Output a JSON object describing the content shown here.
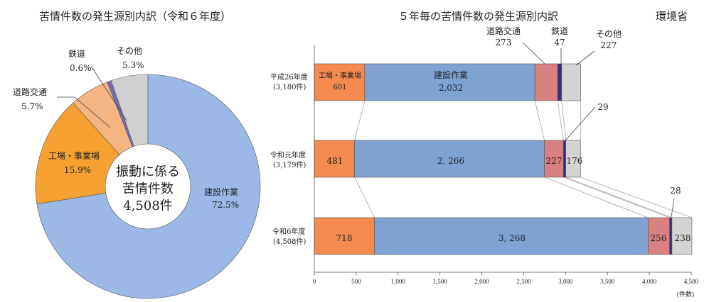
{
  "credit": "環境省",
  "chart_data": [
    {
      "type": "pie",
      "title": "苦情件数の発生源別内訳（令和６年度）",
      "center_text": [
        "振動に係る",
        "苦情件数",
        "4,508件"
      ],
      "slices": [
        {
          "name": "建設作業",
          "pct_label": "72.5%",
          "value": 72.5,
          "color": "#9bb8e6"
        },
        {
          "name": "工場・事業場",
          "pct_label": "15.9%",
          "value": 15.9,
          "color": "#f6a131"
        },
        {
          "name": "道路交通",
          "pct_label": "5.7%",
          "value": 5.7,
          "color": "#f5b583"
        },
        {
          "name": "鉄道",
          "pct_label": "0.6%",
          "value": 0.6,
          "color": "#7a6ab5"
        },
        {
          "name": "その他",
          "pct_label": "5.3%",
          "value": 5.3,
          "color": "#d0d0d0"
        }
      ]
    },
    {
      "type": "bar",
      "orientation": "horizontal",
      "stacked": true,
      "title": "５年毎の苦情件数の発生源別内訳",
      "categories": [
        {
          "line1": "平成26年度",
          "line2": "(3,180件)"
        },
        {
          "line1": "令和元年度",
          "line2": "(3,179件)"
        },
        {
          "line1": "令和6年度",
          "line2": "(4,508件)"
        }
      ],
      "series": [
        {
          "name": "工場・事業場",
          "values": [
            601,
            481,
            718
          ],
          "color": "#f58a4e"
        },
        {
          "name": "建設作業",
          "values": [
            2032,
            2266,
            3268
          ],
          "color": "#7fa2d3"
        },
        {
          "name": "道路交通",
          "values": [
            273,
            227,
            256
          ],
          "color": "#d98080"
        },
        {
          "name": "鉄道",
          "values": [
            47,
            29,
            28
          ],
          "color": "#3a2c7a"
        },
        {
          "name": "その他",
          "values": [
            227,
            176,
            238
          ],
          "color": "#d3d3d3"
        }
      ],
      "xlim": [
        0,
        4500
      ],
      "xticks": [
        "0",
        "500",
        "1,000",
        "1,500",
        "2,000",
        "2,500",
        "3,000",
        "3,500",
        "4,000",
        "4,500"
      ],
      "xunit": "(件数)",
      "inbar_labels": {
        "row0": {
          "factory_name": "工場・事業場",
          "factory": "601",
          "construction_name": "建設作業",
          "construction": "2,032"
        },
        "row1": {
          "factory": "481",
          "construction": "2, 266",
          "road": "227",
          "other": "176"
        },
        "row2": {
          "factory": "718",
          "construction": "3, 268",
          "road": "256",
          "other": "238"
        }
      },
      "callouts": {
        "road_name": "道路交通",
        "road_value": "273",
        "rail_name": "鉄道",
        "rail_value": "47",
        "other_name": "その他",
        "other_value": "227",
        "rail_2019": "29",
        "rail_2024": "28"
      }
    }
  ]
}
